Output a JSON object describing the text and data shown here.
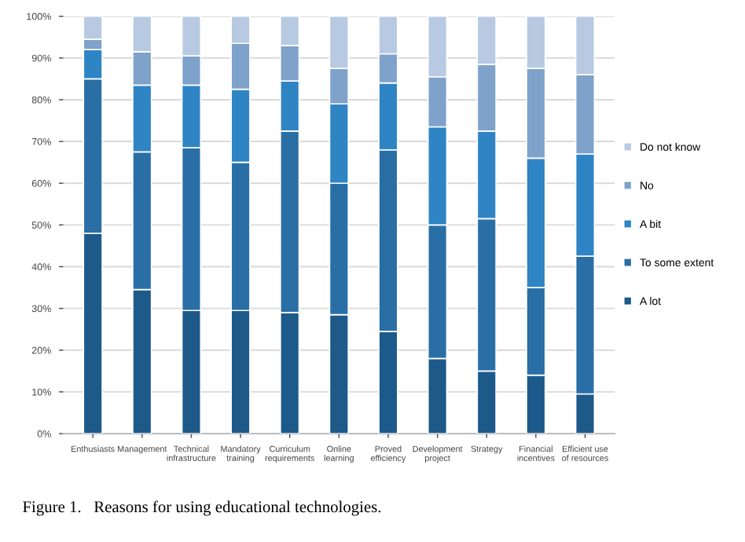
{
  "chart_data": {
    "type": "bar",
    "stacked": true,
    "categories": [
      "Enthusiasts",
      "Management",
      "Technical\ninfrastructure",
      "Mandatory\ntraining",
      "Curriculum\nrequirements",
      "Online\nlearning",
      "Proved\nefficiency",
      "Development\nproject",
      "Strategy",
      "Financial\nincentives",
      "Efficient use\nof resources"
    ],
    "series": [
      {
        "name": "A lot",
        "color": "#1d5a8a",
        "values": [
          48,
          34.5,
          29.5,
          29.5,
          29,
          28.5,
          24.5,
          18,
          15,
          14,
          9.5
        ]
      },
      {
        "name": "To some extent",
        "color": "#2a6ea6",
        "values": [
          37,
          33,
          39,
          35.5,
          43.5,
          31.5,
          43.5,
          32,
          36.5,
          21,
          33
        ]
      },
      {
        "name": "A bit",
        "color": "#2f84c4",
        "values": [
          7,
          16,
          15,
          17.5,
          12,
          19,
          16,
          23.5,
          21,
          31,
          24.5
        ]
      },
      {
        "name": "No",
        "color": "#7fa2cb",
        "values": [
          2.5,
          8,
          7,
          11,
          8.5,
          8.5,
          7,
          12,
          16,
          21.5,
          19
        ]
      },
      {
        "name": "Do not know",
        "color": "#b7cae2",
        "values": [
          5.5,
          8.5,
          9.5,
          6.5,
          7,
          12.5,
          9,
          14.5,
          11.5,
          12.5,
          14
        ]
      }
    ],
    "ylim": [
      0,
      100
    ],
    "yticks": [
      {
        "value": 0,
        "label": "0%"
      },
      {
        "value": 10,
        "label": "10%"
      },
      {
        "value": 20,
        "label": "20%"
      },
      {
        "value": 30,
        "label": "30%"
      },
      {
        "value": 40,
        "label": "40%"
      },
      {
        "value": 50,
        "label": "50%"
      },
      {
        "value": 60,
        "label": "60%"
      },
      {
        "value": 70,
        "label": "70%"
      },
      {
        "value": 80,
        "label": "80%"
      },
      {
        "value": 90,
        "label": "90%"
      },
      {
        "value": 100,
        "label": "100%"
      }
    ],
    "grid": "y",
    "legend": "right",
    "annotations": [
      "Figure 1.   Reasons for using educational technologies."
    ]
  }
}
